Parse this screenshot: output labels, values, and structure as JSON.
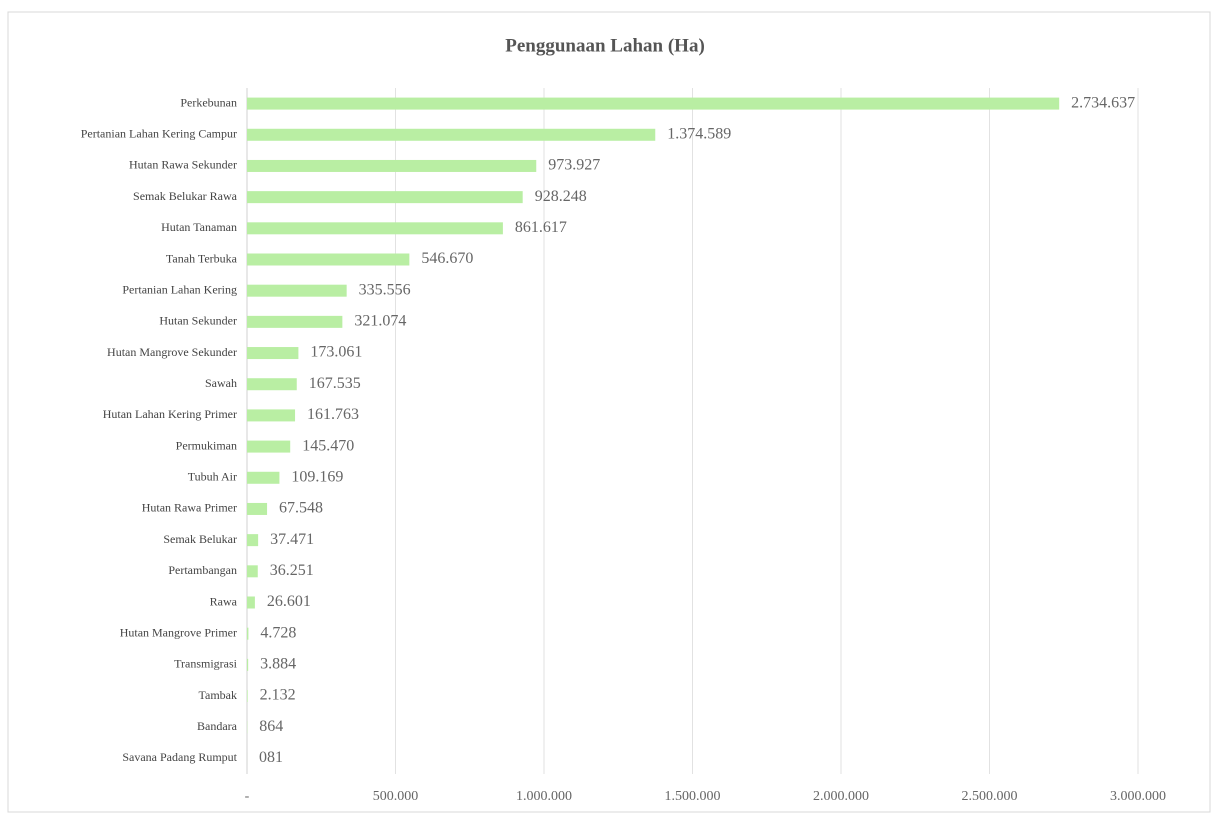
{
  "chart_data": {
    "type": "barh",
    "title": "Penggunaan Lahan (Ha)",
    "categories": [
      "Perkebunan",
      "Pertanian Lahan Kering Campur",
      "Hutan Rawa Sekunder",
      "Semak Belukar Rawa",
      "Hutan Tanaman",
      "Tanah Terbuka",
      "Pertanian Lahan Kering",
      "Hutan Sekunder",
      "Hutan Mangrove Sekunder",
      "Sawah",
      "Hutan Lahan Kering Primer",
      "Permukiman",
      "Tubuh Air",
      "Hutan Rawa Primer",
      "Semak Belukar",
      "Pertambangan",
      "Rawa",
      "Hutan Mangrove Primer",
      "Transmigrasi",
      "Tambak",
      "Bandara",
      "Savana Padang Rumput"
    ],
    "values": [
      2734637,
      1374589,
      973927,
      928248,
      861617,
      546670,
      335556,
      321074,
      173061,
      167535,
      161763,
      145470,
      109169,
      67548,
      37471,
      36251,
      26601,
      4728,
      3884,
      2132,
      864,
      81
    ],
    "value_labels": [
      "2.734.637",
      "1.374.589",
      "973.927",
      "928.248",
      "861.617",
      "546.670",
      "335.556",
      "321.074",
      "173.061",
      "167.535",
      "161.763",
      "145.470",
      "109.169",
      "67.548",
      "37.471",
      "36.251",
      "26.601",
      "4.728",
      "3.884",
      "2.132",
      "864",
      "081"
    ],
    "color": "#b9eea3",
    "xlim": [
      0,
      3000000
    ],
    "xticks": [
      {
        "value": 0,
        "label": "-"
      },
      {
        "value": 500000,
        "label": "500.000"
      },
      {
        "value": 1000000,
        "label": "1.000.000"
      },
      {
        "value": 1500000,
        "label": "1.500.000"
      },
      {
        "value": 2000000,
        "label": "2.000.000"
      },
      {
        "value": 2500000,
        "label": "2.500.000"
      },
      {
        "value": 3000000,
        "label": "3.000.000"
      }
    ],
    "grid": true
  }
}
